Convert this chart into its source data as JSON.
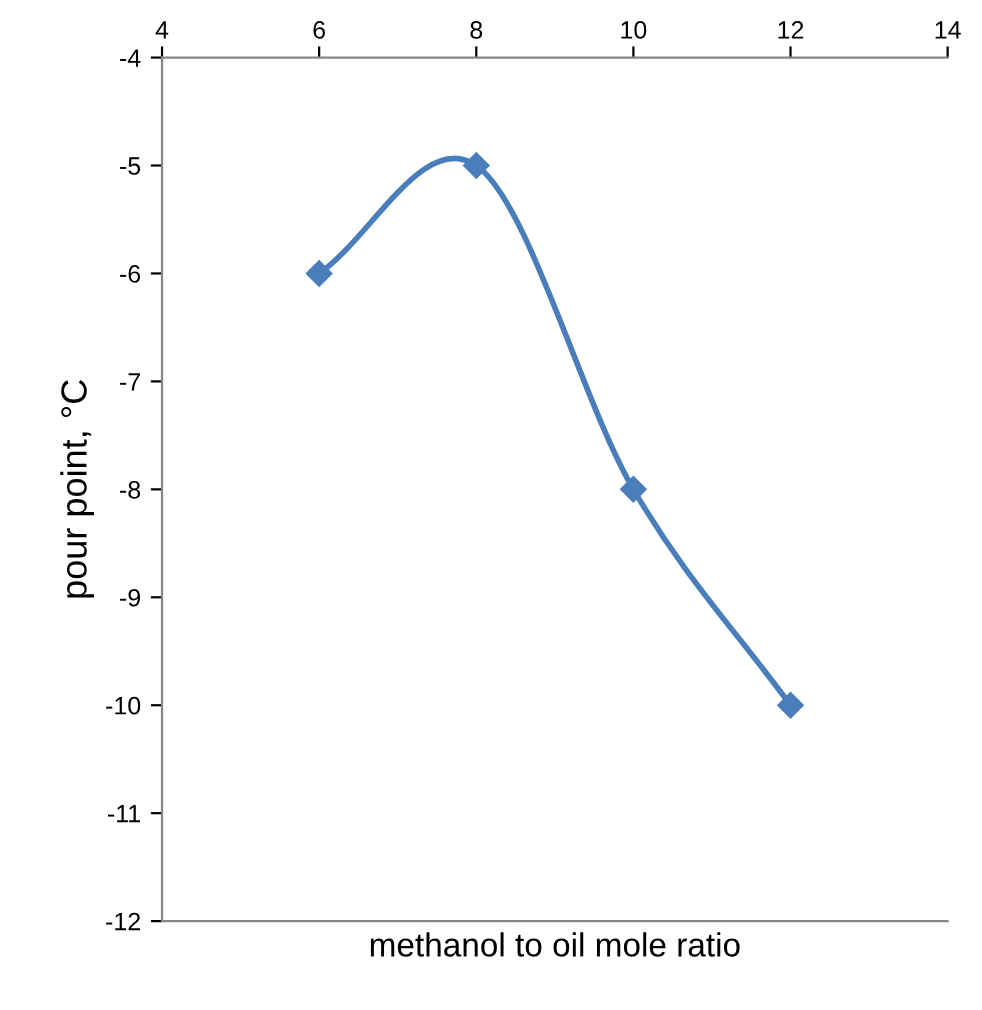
{
  "chart_data": {
    "type": "line",
    "xlabel": "methanol to oil mole ratio",
    "ylabel": "pour point, °C",
    "x": [
      6,
      8,
      10,
      12
    ],
    "series": [
      {
        "color": "#4a7ebb",
        "values": [
          -6,
          -5,
          -8,
          -10
        ]
      }
    ],
    "xlim": [
      4,
      14
    ],
    "xticks": [
      4,
      6,
      8,
      10,
      12,
      14
    ],
    "ylim": [
      -12,
      -4
    ],
    "yticks": [
      -12,
      -11,
      -10,
      -9,
      -8,
      -7,
      -6,
      -5,
      -4
    ],
    "marker": "diamond",
    "line_style": "solid",
    "grid": false,
    "legend": false
  }
}
